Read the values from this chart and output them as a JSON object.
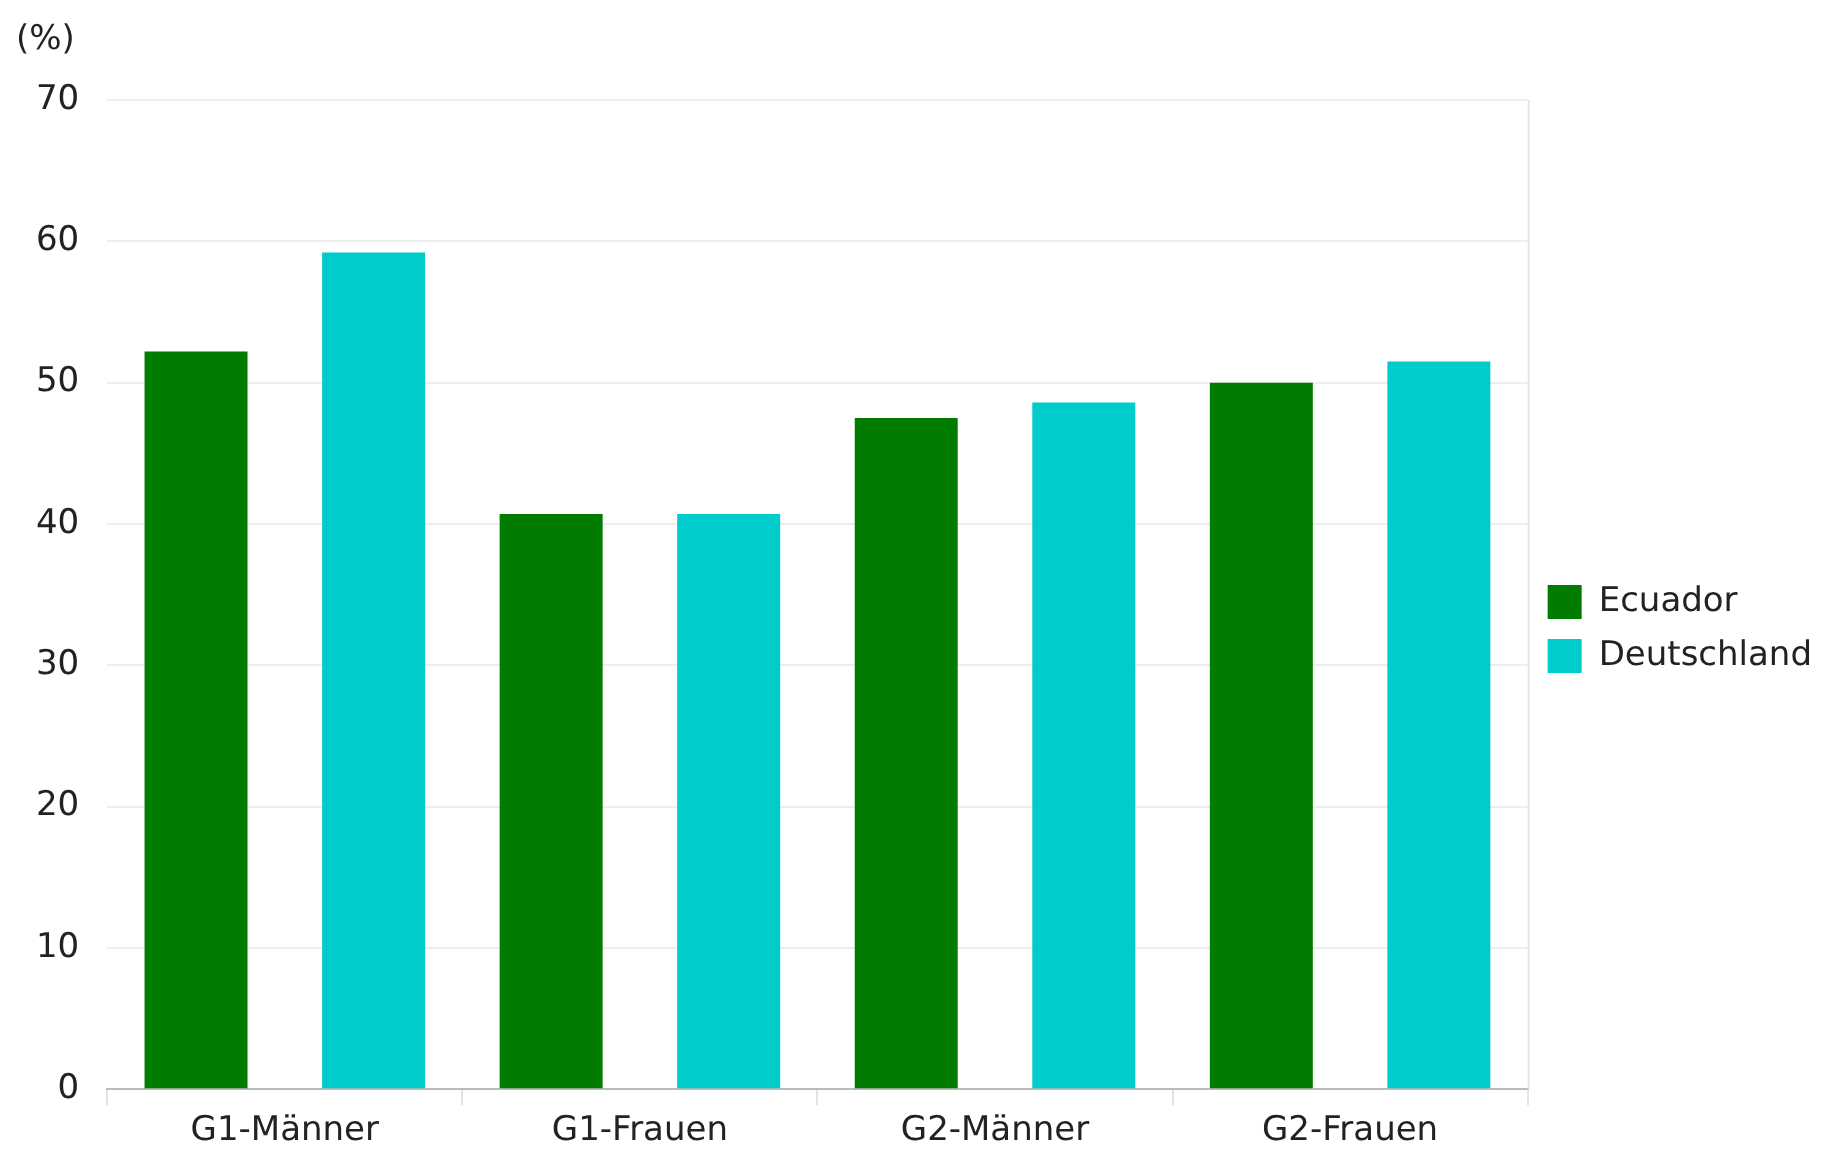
{
  "chart_data": {
    "type": "bar",
    "ylabel": "(%)",
    "categories": [
      "G1-Männer",
      "G1-Frauen",
      "G2-Männer",
      "G2-Frauen"
    ],
    "series": [
      {
        "name": "Ecuador",
        "color": "#007d00",
        "values": [
          52.2,
          40.7,
          47.5,
          50.0
        ]
      },
      {
        "name": "Deutschland",
        "color": "#00cccc",
        "values": [
          59.2,
          40.7,
          48.6,
          51.5
        ]
      }
    ],
    "ylim": [
      0,
      70
    ],
    "yticks": [
      0,
      10,
      20,
      30,
      40,
      50,
      60,
      70
    ],
    "grid": "y",
    "legend": "right"
  }
}
